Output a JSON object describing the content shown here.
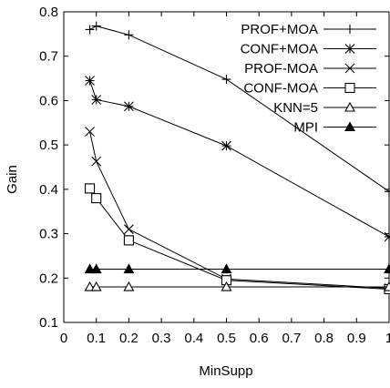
{
  "chart_data": {
    "type": "line",
    "xlabel": "MinSupp",
    "ylabel": "Gain",
    "xlim": [
      0,
      1
    ],
    "ylim": [
      0.1,
      0.8
    ],
    "xticks": [
      "0",
      "0.1",
      "0.2",
      "0.3",
      "0.4",
      "0.5",
      "0.6",
      "0.7",
      "0.8",
      "0.9",
      "1"
    ],
    "yticks": [
      "0.1",
      "0.2",
      "0.3",
      "0.4",
      "0.5",
      "0.6",
      "0.7",
      "0.8"
    ],
    "legend_position": "top-right",
    "grid": false,
    "series": [
      {
        "name": "PROF+MOA",
        "marker": "plus",
        "x": [
          0.08,
          0.1,
          0.2,
          0.5,
          1
        ],
        "y": [
          0.76,
          0.768,
          0.748,
          0.648,
          0.395
        ]
      },
      {
        "name": "CONF+MOA",
        "marker": "star",
        "x": [
          0.08,
          0.1,
          0.2,
          0.5,
          1
        ],
        "y": [
          0.645,
          0.602,
          0.587,
          0.498,
          0.293
        ]
      },
      {
        "name": "PROF-MOA",
        "marker": "cross",
        "x": [
          0.08,
          0.1,
          0.2,
          0.5,
          1
        ],
        "y": [
          0.53,
          0.463,
          0.31,
          0.198,
          0.177
        ]
      },
      {
        "name": "CONF-MOA",
        "marker": "square",
        "x": [
          0.08,
          0.1,
          0.2,
          0.5,
          1
        ],
        "y": [
          0.402,
          0.38,
          0.285,
          0.195,
          0.175
        ]
      },
      {
        "name": "KNN=5",
        "marker": "triangle-open",
        "x": [
          0.08,
          0.1,
          0.2,
          0.5,
          1
        ],
        "y": [
          0.18,
          0.18,
          0.18,
          0.18,
          0.18
        ]
      },
      {
        "name": "MPI",
        "marker": "triangle-filled",
        "x": [
          0.08,
          0.1,
          0.2,
          0.5,
          1
        ],
        "y": [
          0.22,
          0.22,
          0.22,
          0.22,
          0.22
        ]
      }
    ]
  }
}
